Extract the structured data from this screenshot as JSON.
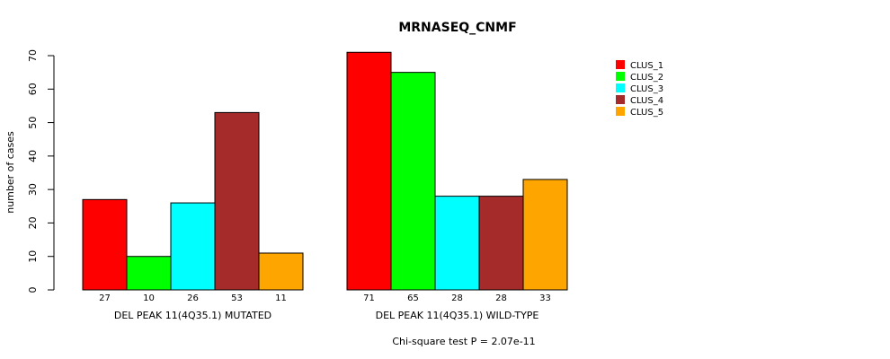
{
  "chart_data": {
    "type": "bar",
    "title": "MRNASEQ_CNMF",
    "ylabel": "number of cases",
    "ylim": [
      0,
      70
    ],
    "yticks": [
      "0",
      "10",
      "20",
      "30",
      "40",
      "50",
      "60",
      "70"
    ],
    "groups": [
      {
        "label": "DEL PEAK 11(4Q35.1) MUTATED",
        "values": [
          27,
          10,
          26,
          53,
          11
        ]
      },
      {
        "label": "DEL PEAK 11(4Q35.1) WILD-TYPE",
        "values": [
          71,
          65,
          28,
          28,
          33
        ]
      }
    ],
    "series": [
      {
        "name": "CLUS_1",
        "color": "#ff0000"
      },
      {
        "name": "CLUS_2",
        "color": "#00ff00"
      },
      {
        "name": "CLUS_3",
        "color": "#00ffff"
      },
      {
        "name": "CLUS_4",
        "color": "#a52a2a"
      },
      {
        "name": "CLUS_5",
        "color": "#ffa500"
      }
    ],
    "legend_position": "top-right",
    "grid": false,
    "footnote": "Chi-square test P = 2.07e-11"
  }
}
